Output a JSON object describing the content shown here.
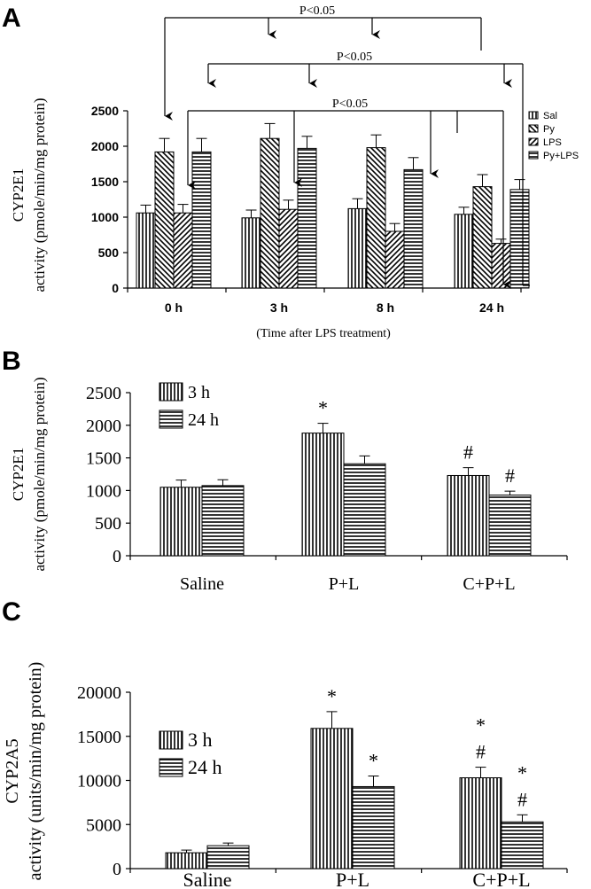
{
  "chart_data": [
    {
      "panel": "A",
      "type": "bar",
      "ylabel_line1": "CYP2E1",
      "ylabel_line2": "activity (pmole/min/mg protein)",
      "xlabel": "(Time after LPS treatment)",
      "categories": [
        "0 h",
        "3 h",
        "8 h",
        "24 h"
      ],
      "ylim": [
        0,
        2500
      ],
      "yticks": [
        0,
        500,
        1000,
        1500,
        2000,
        2500
      ],
      "legend_position": "right",
      "series": [
        {
          "name": "Sal",
          "pattern": "vertical",
          "values": [
            1060,
            990,
            1120,
            1040
          ],
          "errors": [
            110,
            110,
            140,
            100
          ]
        },
        {
          "name": "Py",
          "pattern": "diag-back",
          "values": [
            1920,
            2110,
            1980,
            1430
          ],
          "errors": [
            190,
            210,
            180,
            170
          ]
        },
        {
          "name": "LPS",
          "pattern": "diag-fwd",
          "values": [
            1060,
            1110,
            800,
            630
          ],
          "errors": [
            120,
            130,
            110,
            60
          ]
        },
        {
          "name": "Py+LPS",
          "pattern": "horizontal",
          "values": [
            1920,
            1970,
            1670,
            1390
          ],
          "errors": [
            190,
            170,
            170,
            140
          ]
        }
      ],
      "brackets": [
        {
          "label": "P<0.05"
        },
        {
          "label": "P<0.05"
        },
        {
          "label": "P<0.05"
        }
      ]
    },
    {
      "panel": "B",
      "type": "bar",
      "ylabel_line1": "CYP2E1",
      "ylabel_line2": "activity (pmole/min/mg protein)",
      "categories": [
        "Saline",
        "P+L",
        "C+P+L"
      ],
      "ylim": [
        0,
        2500
      ],
      "yticks": [
        0,
        500,
        1000,
        1500,
        2000,
        2500
      ],
      "legend_position": "top-left",
      "series": [
        {
          "name": "3 h",
          "pattern": "vertical",
          "values": [
            1050,
            1880,
            1230
          ],
          "errors": [
            110,
            150,
            120
          ],
          "marks": [
            "",
            "*",
            "#"
          ]
        },
        {
          "name": "24 h",
          "pattern": "horizontal",
          "values": [
            1075,
            1410,
            930
          ],
          "errors": [
            90,
            120,
            60
          ],
          "marks": [
            "",
            "",
            "#"
          ]
        }
      ]
    },
    {
      "panel": "C",
      "type": "bar",
      "ylabel_line1": "CYP2A5",
      "ylabel_line2": "activity (units/min/mg protein)",
      "categories": [
        "Saline",
        "P+L",
        "C+P+L"
      ],
      "ylim": [
        0,
        20000
      ],
      "yticks": [
        0,
        5000,
        10000,
        15000,
        20000
      ],
      "legend_position": "top-left",
      "series": [
        {
          "name": "3 h",
          "pattern": "vertical",
          "values": [
            1800,
            15900,
            10300
          ],
          "errors": [
            300,
            1900,
            1200
          ],
          "marks": [
            "",
            "*",
            "*\n#"
          ]
        },
        {
          "name": "24 h",
          "pattern": "horizontal",
          "values": [
            2600,
            9300,
            5300
          ],
          "errors": [
            300,
            1200,
            800
          ],
          "marks": [
            "",
            "*",
            "*\n#"
          ]
        }
      ]
    }
  ]
}
